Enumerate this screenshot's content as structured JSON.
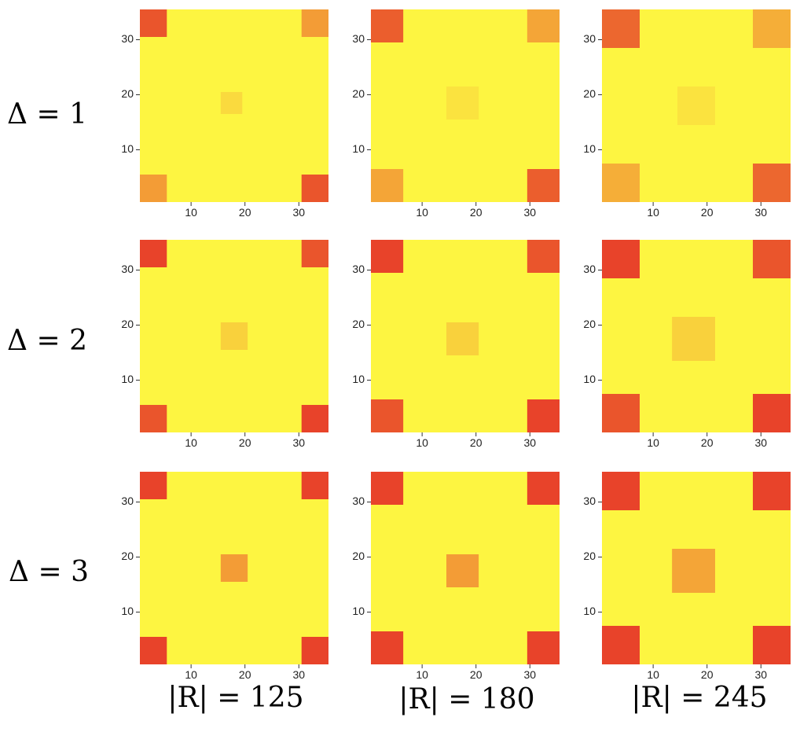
{
  "chart_data": {
    "type": "heatmap",
    "layout": {
      "rows": 3,
      "cols": 3
    },
    "row_labels": [
      "Δ = 1",
      "Δ = 2",
      "Δ = 3"
    ],
    "col_labels": [
      "|R| = 125",
      "|R| = 180",
      "|R| = 245"
    ],
    "x_ticks": [
      10,
      20,
      30
    ],
    "y_ticks": [
      10,
      20,
      30
    ],
    "xlim": [
      0.5,
      35.5
    ],
    "ylim": [
      0.5,
      35.5
    ],
    "grid": false,
    "colors": {
      "background": "#fdf541",
      "corner_strong": "#e8432a",
      "corner_medium": "#e8712c",
      "corner_weak": "#eda43a",
      "center_faint": "#f5dd47",
      "center_medium": "#f2c943",
      "center_strong": "#eda43a"
    },
    "panels": [
      {
        "row": 0,
        "col": 0,
        "blocks": [
          {
            "x": [
              0.5,
              5.5
            ],
            "y": [
              30.5,
              35.5
            ],
            "intensity": 0.9
          },
          {
            "x": [
              30.5,
              35.5
            ],
            "y": [
              30.5,
              35.5
            ],
            "intensity": 0.5
          },
          {
            "x": [
              0.5,
              5.5
            ],
            "y": [
              0.5,
              5.5
            ],
            "intensity": 0.5
          },
          {
            "x": [
              30.5,
              35.5
            ],
            "y": [
              0.5,
              5.5
            ],
            "intensity": 0.9
          },
          {
            "x": [
              15.5,
              19.5
            ],
            "y": [
              16.5,
              20.5
            ],
            "intensity": 0.15
          }
        ]
      },
      {
        "row": 0,
        "col": 1,
        "blocks": [
          {
            "x": [
              0.5,
              6.5
            ],
            "y": [
              29.5,
              35.5
            ],
            "intensity": 0.85
          },
          {
            "x": [
              29.5,
              35.5
            ],
            "y": [
              29.5,
              35.5
            ],
            "intensity": 0.45
          },
          {
            "x": [
              0.5,
              6.5
            ],
            "y": [
              0.5,
              6.5
            ],
            "intensity": 0.45
          },
          {
            "x": [
              29.5,
              35.5
            ],
            "y": [
              0.5,
              6.5
            ],
            "intensity": 0.85
          },
          {
            "x": [
              14.5,
              20.5
            ],
            "y": [
              15.5,
              21.5
            ],
            "intensity": 0.1
          }
        ]
      },
      {
        "row": 0,
        "col": 2,
        "blocks": [
          {
            "x": [
              0.5,
              7.5
            ],
            "y": [
              28.5,
              35.5
            ],
            "intensity": 0.8
          },
          {
            "x": [
              28.5,
              35.5
            ],
            "y": [
              28.5,
              35.5
            ],
            "intensity": 0.4
          },
          {
            "x": [
              0.5,
              7.5
            ],
            "y": [
              0.5,
              7.5
            ],
            "intensity": 0.4
          },
          {
            "x": [
              28.5,
              35.5
            ],
            "y": [
              0.5,
              7.5
            ],
            "intensity": 0.8
          },
          {
            "x": [
              14.5,
              21.5
            ],
            "y": [
              14.5,
              21.5
            ],
            "intensity": 0.1
          }
        ]
      },
      {
        "row": 1,
        "col": 0,
        "blocks": [
          {
            "x": [
              0.5,
              5.5
            ],
            "y": [
              30.5,
              35.5
            ],
            "intensity": 1.0
          },
          {
            "x": [
              30.5,
              35.5
            ],
            "y": [
              30.5,
              35.5
            ],
            "intensity": 0.9
          },
          {
            "x": [
              0.5,
              5.5
            ],
            "y": [
              0.5,
              5.5
            ],
            "intensity": 0.9
          },
          {
            "x": [
              30.5,
              35.5
            ],
            "y": [
              0.5,
              5.5
            ],
            "intensity": 1.0
          },
          {
            "x": [
              15.5,
              20.5
            ],
            "y": [
              15.5,
              20.5
            ],
            "intensity": 0.2
          }
        ]
      },
      {
        "row": 1,
        "col": 1,
        "blocks": [
          {
            "x": [
              0.5,
              6.5
            ],
            "y": [
              29.5,
              35.5
            ],
            "intensity": 1.0
          },
          {
            "x": [
              29.5,
              35.5
            ],
            "y": [
              29.5,
              35.5
            ],
            "intensity": 0.9
          },
          {
            "x": [
              0.5,
              6.5
            ],
            "y": [
              0.5,
              6.5
            ],
            "intensity": 0.9
          },
          {
            "x": [
              29.5,
              35.5
            ],
            "y": [
              0.5,
              6.5
            ],
            "intensity": 1.0
          },
          {
            "x": [
              14.5,
              20.5
            ],
            "y": [
              14.5,
              20.5
            ],
            "intensity": 0.2
          }
        ]
      },
      {
        "row": 1,
        "col": 2,
        "blocks": [
          {
            "x": [
              0.5,
              7.5
            ],
            "y": [
              28.5,
              35.5
            ],
            "intensity": 1.0
          },
          {
            "x": [
              28.5,
              35.5
            ],
            "y": [
              28.5,
              35.5
            ],
            "intensity": 0.9
          },
          {
            "x": [
              0.5,
              7.5
            ],
            "y": [
              0.5,
              7.5
            ],
            "intensity": 0.9
          },
          {
            "x": [
              28.5,
              35.5
            ],
            "y": [
              0.5,
              7.5
            ],
            "intensity": 1.0
          },
          {
            "x": [
              13.5,
              21.5
            ],
            "y": [
              13.5,
              21.5
            ],
            "intensity": 0.2
          }
        ]
      },
      {
        "row": 2,
        "col": 0,
        "blocks": [
          {
            "x": [
              0.5,
              5.5
            ],
            "y": [
              30.5,
              35.5
            ],
            "intensity": 1.0
          },
          {
            "x": [
              30.5,
              35.5
            ],
            "y": [
              30.5,
              35.5
            ],
            "intensity": 1.0
          },
          {
            "x": [
              0.5,
              5.5
            ],
            "y": [
              0.5,
              5.5
            ],
            "intensity": 1.0
          },
          {
            "x": [
              30.5,
              35.5
            ],
            "y": [
              0.5,
              5.5
            ],
            "intensity": 1.0
          },
          {
            "x": [
              15.5,
              20.5
            ],
            "y": [
              15.5,
              20.5
            ],
            "intensity": 0.5
          }
        ]
      },
      {
        "row": 2,
        "col": 1,
        "blocks": [
          {
            "x": [
              0.5,
              6.5
            ],
            "y": [
              29.5,
              35.5
            ],
            "intensity": 1.0
          },
          {
            "x": [
              29.5,
              35.5
            ],
            "y": [
              29.5,
              35.5
            ],
            "intensity": 1.0
          },
          {
            "x": [
              0.5,
              6.5
            ],
            "y": [
              0.5,
              6.5
            ],
            "intensity": 1.0
          },
          {
            "x": [
              29.5,
              35.5
            ],
            "y": [
              0.5,
              6.5
            ],
            "intensity": 1.0
          },
          {
            "x": [
              14.5,
              20.5
            ],
            "y": [
              14.5,
              20.5
            ],
            "intensity": 0.5
          }
        ]
      },
      {
        "row": 2,
        "col": 2,
        "blocks": [
          {
            "x": [
              0.5,
              7.5
            ],
            "y": [
              28.5,
              35.5
            ],
            "intensity": 1.0
          },
          {
            "x": [
              28.5,
              35.5
            ],
            "y": [
              28.5,
              35.5
            ],
            "intensity": 1.0
          },
          {
            "x": [
              0.5,
              7.5
            ],
            "y": [
              0.5,
              7.5
            ],
            "intensity": 1.0
          },
          {
            "x": [
              28.5,
              35.5
            ],
            "y": [
              0.5,
              7.5
            ],
            "intensity": 1.0
          },
          {
            "x": [
              13.5,
              21.5
            ],
            "y": [
              13.5,
              21.5
            ],
            "intensity": 0.45
          }
        ]
      }
    ]
  }
}
